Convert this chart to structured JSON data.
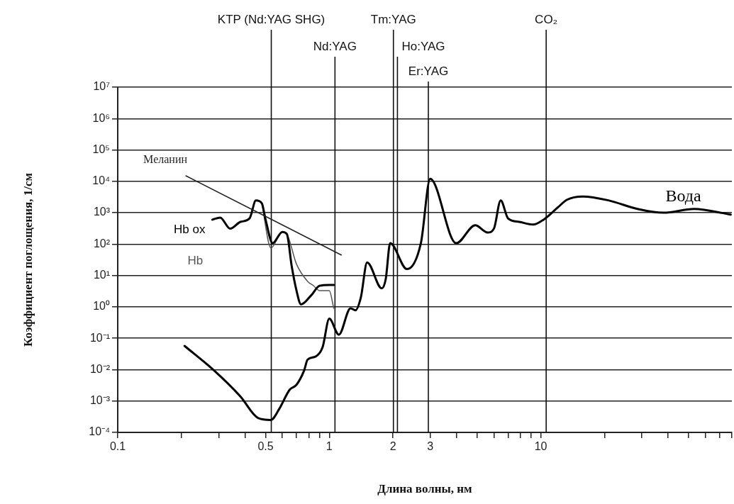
{
  "chart_data": {
    "type": "line",
    "xlabel": "Длина волны, нм",
    "ylabel": "Коэффициент поглощения, 1/см",
    "log": "xy",
    "grid": "y",
    "legend": false,
    "marker": "none",
    "line_style": "solid",
    "xlim": [
      0.1,
      80
    ],
    "xticks": [
      0.1,
      {
        "value": 0.2,
        "label": null
      },
      {
        "value": 0.3,
        "label": null
      },
      {
        "value": 0.4,
        "label": null
      },
      0.5,
      {
        "value": 0.6,
        "label": null
      },
      {
        "value": 0.7,
        "label": null
      },
      {
        "value": 0.8,
        "label": null
      },
      {
        "value": 0.9,
        "label": null
      },
      1,
      2,
      3,
      {
        "value": 4,
        "label": null
      },
      {
        "value": 5,
        "label": null
      },
      {
        "value": 6,
        "label": null
      },
      {
        "value": 7,
        "label": null
      },
      {
        "value": 8,
        "label": null
      },
      {
        "value": 9,
        "label": null
      },
      10,
      {
        "value": 20,
        "label": null
      },
      {
        "value": 30,
        "label": null
      },
      {
        "value": 40,
        "label": null
      },
      {
        "value": 50,
        "label": null
      },
      {
        "value": 60,
        "label": null
      },
      {
        "value": 70,
        "label": null
      },
      {
        "value": 80,
        "label": null
      }
    ],
    "ylim": [
      0.0001,
      10000000
    ],
    "yticks": [
      {
        "value": 0.0001,
        "label": "10⁻⁴"
      },
      {
        "value": 0.001,
        "label": "10⁻³"
      },
      {
        "value": 0.01,
        "label": "10⁻²"
      },
      {
        "value": 0.1,
        "label": "10⁻¹"
      },
      {
        "value": 1,
        "label": "10⁰"
      },
      {
        "value": 10,
        "label": "10¹"
      },
      {
        "value": 100,
        "label": "10²"
      },
      {
        "value": 1000,
        "label": "10³"
      },
      {
        "value": 10000,
        "label": "10⁴"
      },
      {
        "value": 100000,
        "label": "10⁵"
      },
      {
        "value": 1000000,
        "label": "10⁶"
      },
      {
        "value": 10000000,
        "label": "10⁷"
      }
    ],
    "series": [
      {
        "name": "Меланин",
        "color": "#222222",
        "x": [
          0.21,
          1.14
        ],
        "values": [
          15000,
          45
        ]
      },
      {
        "name": "Hb ox",
        "color": "#000000",
        "x": [
          0.28,
          0.305,
          0.34,
          0.38,
          0.42,
          0.45,
          0.48,
          0.5,
          0.54,
          0.6,
          0.63,
          0.665,
          0.7,
          0.735,
          0.82,
          0.9,
          1.0,
          1.05
        ],
        "values": [
          600,
          700,
          310,
          510,
          660,
          2450,
          2000,
          600,
          107,
          245,
          210,
          19,
          3.3,
          1.2,
          2.3,
          4.7,
          5,
          5
        ]
      },
      {
        "name": "Hb",
        "color": "#555555",
        "x": [
          0.48,
          0.53,
          0.6,
          0.63,
          0.7,
          0.79,
          0.84,
          0.9,
          1.0,
          1.05
        ],
        "values": [
          2000,
          75,
          245,
          210,
          23,
          6.5,
          4.8,
          3.3,
          3.3,
          0.9
        ]
      },
      {
        "name": "Вода",
        "color": "#000000",
        "x": [
          0.207,
          0.286,
          0.38,
          0.46,
          0.53,
          0.58,
          0.65,
          0.7,
          0.76,
          0.79,
          0.86,
          0.93,
          1.0,
          1.11,
          1.26,
          1.33,
          1.41,
          1.51,
          1.77,
          1.85,
          1.94,
          2.33,
          2.71,
          3.0,
          3.98,
          4.9,
          5.6,
          6.0,
          6.46,
          7.0,
          7.9,
          9.2,
          10.3,
          12,
          13.3,
          15.8,
          21,
          28.6,
          38,
          53,
          79
        ],
        "values": [
          0.057,
          0.0093,
          0.0014,
          0.00029,
          0.00025,
          0.00056,
          0.0023,
          0.0033,
          0.0093,
          0.021,
          0.026,
          0.052,
          0.42,
          0.13,
          0.9,
          0.78,
          2.0,
          26,
          3.9,
          7.9,
          107,
          16,
          107,
          12000,
          107,
          400,
          235,
          310,
          2450,
          660,
          510,
          420,
          600,
          1450,
          2600,
          3300,
          2450,
          1320,
          1000,
          1320,
          870
        ]
      }
    ],
    "ref_lines": [
      {
        "axis": "x",
        "value": 0.532,
        "label": "KTP (Nd:YAG SHG)"
      },
      {
        "axis": "x",
        "value": 1.064,
        "label": "Nd:YAG"
      },
      {
        "axis": "x",
        "value": 2.01,
        "label": "Tm:YAG"
      },
      {
        "axis": "x",
        "value": 2.1,
        "label": "Ho:YAG"
      },
      {
        "axis": "x",
        "value": 2.94,
        "label": "Er:YAG"
      },
      {
        "axis": "x",
        "value": 10.6,
        "label": "CO₂"
      }
    ]
  }
}
